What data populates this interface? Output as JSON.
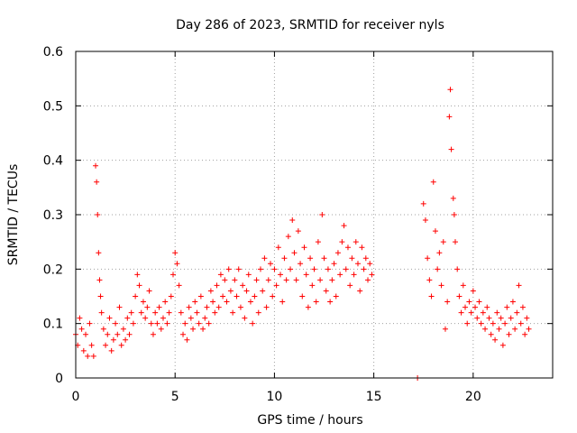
{
  "chart_data": {
    "type": "scatter",
    "title": "Day 286 of 2023, SRMTID for receiver nyls",
    "xlabel": "GPS time / hours",
    "ylabel": "SRMTID / TECUs",
    "xlim": [
      0,
      24
    ],
    "ylim": [
      0,
      0.6
    ],
    "xticks": [
      0,
      5,
      10,
      15,
      20
    ],
    "xtick_labels": [
      "0",
      "5",
      "10",
      "15",
      "20"
    ],
    "yticks": [
      0,
      0.1,
      0.2,
      0.3,
      0.4,
      0.5,
      0.6
    ],
    "ytick_labels": [
      "0",
      "0.1",
      "0.2",
      "0.3",
      "0.4",
      "0.5",
      "0.6"
    ],
    "grid": true,
    "marker": "+",
    "color": "#ff0000",
    "series": [
      {
        "name": "SRMTID",
        "points": [
          [
            0.0,
            0.08
          ],
          [
            0.1,
            0.06
          ],
          [
            0.2,
            0.11
          ],
          [
            0.3,
            0.09
          ],
          [
            0.4,
            0.05
          ],
          [
            0.5,
            0.08
          ],
          [
            0.6,
            0.04
          ],
          [
            0.7,
            0.1
          ],
          [
            0.8,
            0.06
          ],
          [
            0.9,
            0.04
          ],
          [
            1.0,
            0.39
          ],
          [
            1.05,
            0.36
          ],
          [
            1.1,
            0.3
          ],
          [
            1.15,
            0.23
          ],
          [
            1.2,
            0.18
          ],
          [
            1.25,
            0.15
          ],
          [
            1.3,
            0.12
          ],
          [
            1.4,
            0.09
          ],
          [
            1.5,
            0.06
          ],
          [
            1.6,
            0.08
          ],
          [
            1.7,
            0.11
          ],
          [
            1.8,
            0.05
          ],
          [
            1.9,
            0.07
          ],
          [
            2.0,
            0.1
          ],
          [
            2.1,
            0.08
          ],
          [
            2.2,
            0.13
          ],
          [
            2.3,
            0.06
          ],
          [
            2.4,
            0.09
          ],
          [
            2.5,
            0.07
          ],
          [
            2.6,
            0.11
          ],
          [
            2.7,
            0.08
          ],
          [
            2.8,
            0.12
          ],
          [
            2.9,
            0.1
          ],
          [
            3.0,
            0.15
          ],
          [
            3.1,
            0.19
          ],
          [
            3.2,
            0.17
          ],
          [
            3.3,
            0.12
          ],
          [
            3.4,
            0.14
          ],
          [
            3.5,
            0.11
          ],
          [
            3.6,
            0.13
          ],
          [
            3.7,
            0.16
          ],
          [
            3.8,
            0.1
          ],
          [
            3.9,
            0.08
          ],
          [
            4.0,
            0.12
          ],
          [
            4.1,
            0.1
          ],
          [
            4.2,
            0.13
          ],
          [
            4.3,
            0.09
          ],
          [
            4.4,
            0.11
          ],
          [
            4.5,
            0.14
          ],
          [
            4.6,
            0.1
          ],
          [
            4.7,
            0.12
          ],
          [
            4.8,
            0.15
          ],
          [
            4.9,
            0.19
          ],
          [
            5.0,
            0.23
          ],
          [
            5.1,
            0.21
          ],
          [
            5.2,
            0.17
          ],
          [
            5.3,
            0.12
          ],
          [
            5.4,
            0.08
          ],
          [
            5.5,
            0.1
          ],
          [
            5.6,
            0.07
          ],
          [
            5.7,
            0.13
          ],
          [
            5.8,
            0.11
          ],
          [
            5.9,
            0.09
          ],
          [
            6.0,
            0.14
          ],
          [
            6.1,
            0.12
          ],
          [
            6.2,
            0.1
          ],
          [
            6.3,
            0.15
          ],
          [
            6.4,
            0.09
          ],
          [
            6.5,
            0.11
          ],
          [
            6.6,
            0.13
          ],
          [
            6.7,
            0.1
          ],
          [
            6.8,
            0.16
          ],
          [
            6.9,
            0.14
          ],
          [
            7.0,
            0.12
          ],
          [
            7.1,
            0.17
          ],
          [
            7.2,
            0.13
          ],
          [
            7.3,
            0.19
          ],
          [
            7.4,
            0.15
          ],
          [
            7.5,
            0.18
          ],
          [
            7.6,
            0.14
          ],
          [
            7.7,
            0.2
          ],
          [
            7.8,
            0.16
          ],
          [
            7.9,
            0.12
          ],
          [
            8.0,
            0.18
          ],
          [
            8.1,
            0.15
          ],
          [
            8.2,
            0.2
          ],
          [
            8.3,
            0.13
          ],
          [
            8.4,
            0.17
          ],
          [
            8.5,
            0.11
          ],
          [
            8.6,
            0.16
          ],
          [
            8.7,
            0.19
          ],
          [
            8.8,
            0.14
          ],
          [
            8.9,
            0.1
          ],
          [
            9.0,
            0.15
          ],
          [
            9.1,
            0.18
          ],
          [
            9.2,
            0.12
          ],
          [
            9.3,
            0.2
          ],
          [
            9.4,
            0.16
          ],
          [
            9.5,
            0.22
          ],
          [
            9.6,
            0.13
          ],
          [
            9.7,
            0.18
          ],
          [
            9.8,
            0.21
          ],
          [
            9.9,
            0.15
          ],
          [
            10.0,
            0.2
          ],
          [
            10.1,
            0.17
          ],
          [
            10.2,
            0.24
          ],
          [
            10.3,
            0.19
          ],
          [
            10.4,
            0.14
          ],
          [
            10.5,
            0.22
          ],
          [
            10.6,
            0.18
          ],
          [
            10.7,
            0.26
          ],
          [
            10.8,
            0.2
          ],
          [
            10.9,
            0.29
          ],
          [
            11.0,
            0.23
          ],
          [
            11.1,
            0.18
          ],
          [
            11.2,
            0.27
          ],
          [
            11.3,
            0.21
          ],
          [
            11.4,
            0.15
          ],
          [
            11.5,
            0.24
          ],
          [
            11.6,
            0.19
          ],
          [
            11.7,
            0.13
          ],
          [
            11.8,
            0.22
          ],
          [
            11.9,
            0.17
          ],
          [
            12.0,
            0.2
          ],
          [
            12.1,
            0.14
          ],
          [
            12.2,
            0.25
          ],
          [
            12.3,
            0.18
          ],
          [
            12.4,
            0.3
          ],
          [
            12.5,
            0.22
          ],
          [
            12.6,
            0.16
          ],
          [
            12.7,
            0.2
          ],
          [
            12.8,
            0.14
          ],
          [
            12.9,
            0.18
          ],
          [
            13.0,
            0.21
          ],
          [
            13.1,
            0.15
          ],
          [
            13.2,
            0.23
          ],
          [
            13.3,
            0.19
          ],
          [
            13.4,
            0.25
          ],
          [
            13.5,
            0.28
          ],
          [
            13.6,
            0.2
          ],
          [
            13.7,
            0.24
          ],
          [
            13.8,
            0.17
          ],
          [
            13.9,
            0.22
          ],
          [
            14.0,
            0.19
          ],
          [
            14.1,
            0.25
          ],
          [
            14.2,
            0.21
          ],
          [
            14.3,
            0.16
          ],
          [
            14.4,
            0.24
          ],
          [
            14.5,
            0.2
          ],
          [
            14.6,
            0.22
          ],
          [
            14.7,
            0.18
          ],
          [
            14.8,
            0.21
          ],
          [
            14.9,
            0.19
          ],
          [
            17.2,
            0.0
          ],
          [
            17.5,
            0.32
          ],
          [
            17.6,
            0.29
          ],
          [
            17.7,
            0.22
          ],
          [
            17.8,
            0.18
          ],
          [
            17.9,
            0.15
          ],
          [
            18.0,
            0.36
          ],
          [
            18.1,
            0.27
          ],
          [
            18.2,
            0.2
          ],
          [
            18.3,
            0.23
          ],
          [
            18.4,
            0.17
          ],
          [
            18.5,
            0.25
          ],
          [
            18.6,
            0.09
          ],
          [
            18.7,
            0.14
          ],
          [
            18.8,
            0.48
          ],
          [
            18.85,
            0.53
          ],
          [
            18.9,
            0.42
          ],
          [
            19.0,
            0.33
          ],
          [
            19.05,
            0.3
          ],
          [
            19.1,
            0.25
          ],
          [
            19.2,
            0.2
          ],
          [
            19.3,
            0.15
          ],
          [
            19.4,
            0.12
          ],
          [
            19.5,
            0.17
          ],
          [
            19.6,
            0.13
          ],
          [
            19.7,
            0.1
          ],
          [
            19.8,
            0.14
          ],
          [
            19.9,
            0.12
          ],
          [
            20.0,
            0.16
          ],
          [
            20.1,
            0.13
          ],
          [
            20.2,
            0.11
          ],
          [
            20.3,
            0.14
          ],
          [
            20.4,
            0.1
          ],
          [
            20.5,
            0.12
          ],
          [
            20.6,
            0.09
          ],
          [
            20.7,
            0.13
          ],
          [
            20.8,
            0.11
          ],
          [
            20.9,
            0.08
          ],
          [
            21.0,
            0.1
          ],
          [
            21.1,
            0.07
          ],
          [
            21.2,
            0.12
          ],
          [
            21.3,
            0.09
          ],
          [
            21.4,
            0.11
          ],
          [
            21.5,
            0.06
          ],
          [
            21.6,
            0.1
          ],
          [
            21.7,
            0.13
          ],
          [
            21.8,
            0.08
          ],
          [
            21.9,
            0.11
          ],
          [
            22.0,
            0.14
          ],
          [
            22.1,
            0.09
          ],
          [
            22.2,
            0.12
          ],
          [
            22.3,
            0.17
          ],
          [
            22.4,
            0.1
          ],
          [
            22.5,
            0.13
          ],
          [
            22.6,
            0.08
          ],
          [
            22.7,
            0.11
          ],
          [
            22.8,
            0.09
          ]
        ]
      }
    ]
  }
}
